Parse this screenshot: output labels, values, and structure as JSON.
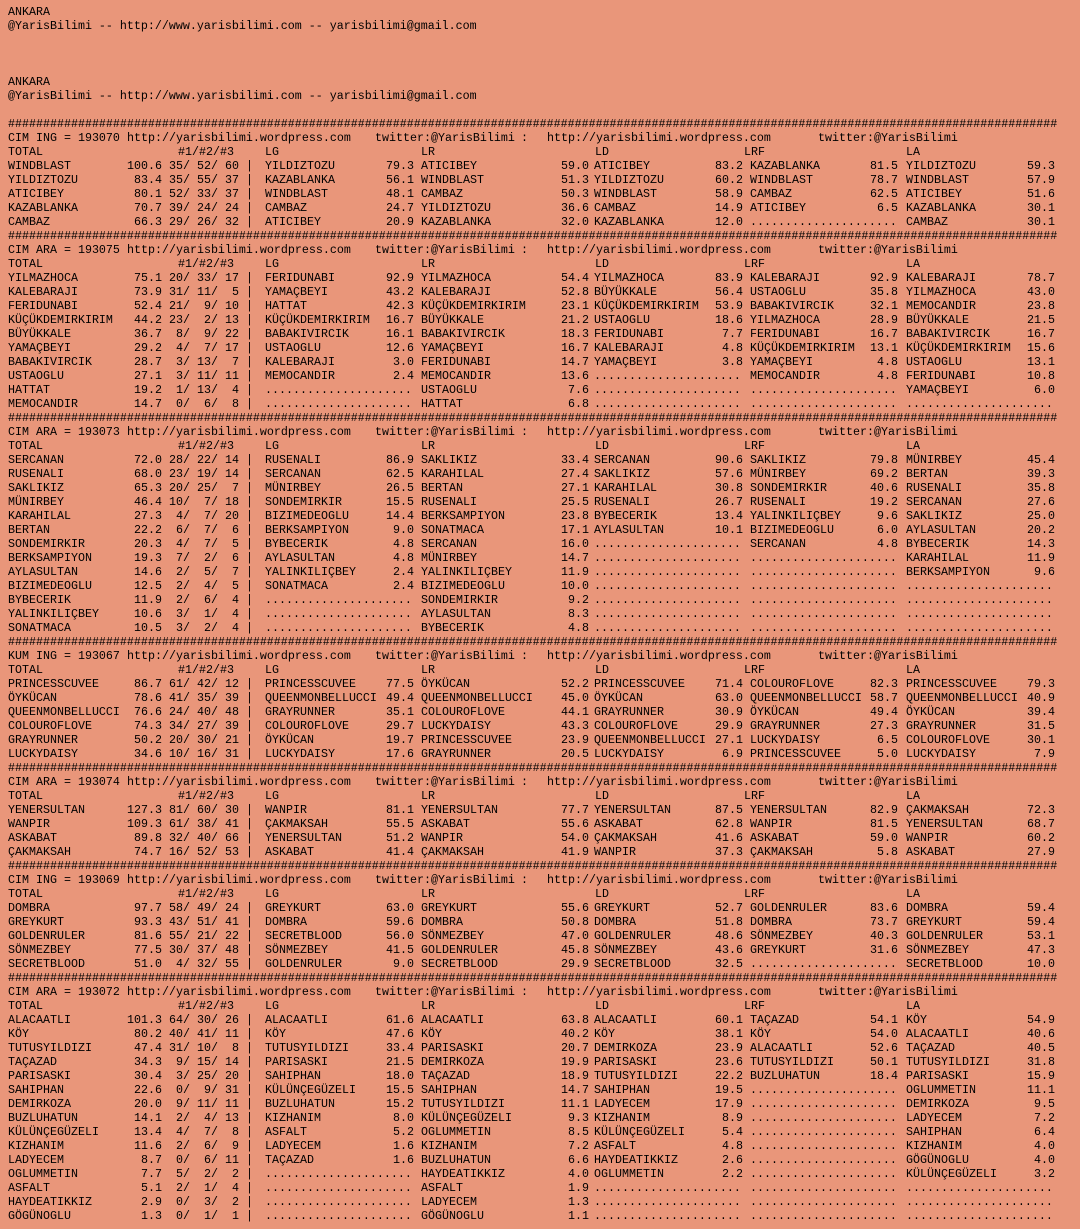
{
  "colors": {
    "background": "#E9967A",
    "text": "#000000"
  },
  "intro": [
    {
      "city": "ANKARA",
      "contact": "@YarisBilimi -- http://www.yarisbilimi.com -- yarisbilimi@gmail.com"
    },
    {
      "city": "ANKARA",
      "contact": "@YarisBilimi -- http://www.yarisbilimi.com -- yarisbilimi@gmail.com"
    }
  ],
  "separator": "######################################################################################################################################################",
  "site_url": "http://yarisbilimi.wordpress.com",
  "twitter": "twitter:@YarisBilimi",
  "twitter_sep": ":",
  "filler": ".....................",
  "bar": "|",
  "column_headers": {
    "total": "TOTAL",
    "ranks": "#1/#2/#3",
    "cols": [
      "LG",
      "LR",
      "LD",
      "LRF",
      "LA"
    ]
  },
  "races": [
    {
      "label": "CIM ING = 193070",
      "rows": [
        [
          "WINDBLAST",
          "100.6",
          35,
          52,
          60,
          "YILDIZTOZU",
          "79.3",
          "ATICIBEY",
          "59.0",
          "ATICIBEY",
          "83.2",
          "KAZABLANKA",
          "81.5",
          "YILDIZTOZU",
          "59.3"
        ],
        [
          "YILDIZTOZU",
          "83.4",
          35,
          55,
          37,
          "KAZABLANKA",
          "56.1",
          "WINDBLAST",
          "51.3",
          "YILDIZTOZU",
          "60.2",
          "WINDBLAST",
          "78.7",
          "WINDBLAST",
          "57.9"
        ],
        [
          "ATICIBEY",
          "80.1",
          52,
          33,
          37,
          "WINDBLAST",
          "48.1",
          "CAMBAZ",
          "50.3",
          "WINDBLAST",
          "58.9",
          "CAMBAZ",
          "62.5",
          "ATICIBEY",
          "51.6"
        ],
        [
          "KAZABLANKA",
          "70.7",
          39,
          24,
          24,
          "CAMBAZ",
          "24.7",
          "YILDIZTOZU",
          "36.6",
          "CAMBAZ",
          "14.9",
          "ATICIBEY",
          "6.5",
          "KAZABLANKA",
          "30.1"
        ],
        [
          "CAMBAZ",
          "66.3",
          29,
          26,
          32,
          "ATICIBEY",
          "20.9",
          "KAZABLANKA",
          "32.0",
          "KAZABLANKA",
          "12.0",
          "",
          "",
          "CAMBAZ",
          "30.1"
        ]
      ]
    },
    {
      "label": "CIM ARA = 193075",
      "rows": [
        [
          "YILMAZHOCA",
          "75.1",
          20,
          33,
          17,
          "FERIDUNABI",
          "92.9",
          "YILMAZHOCA",
          "54.4",
          "YILMAZHOCA",
          "83.9",
          "KALEBARAJI",
          "92.9",
          "KALEBARAJI",
          "78.7"
        ],
        [
          "KALEBARAJI",
          "73.9",
          31,
          11,
          5,
          "YAMAÇBEYI",
          "43.2",
          "KALEBARAJI",
          "52.8",
          "BÜYÜKKALE",
          "56.4",
          "USTAOGLU",
          "35.8",
          "YILMAZHOCA",
          "43.0"
        ],
        [
          "FERIDUNABI",
          "52.4",
          21,
          9,
          10,
          "HATTAT",
          "42.3",
          "KÜÇÜKDEMIRKIRIM",
          "23.1",
          "KÜÇÜKDEMIRKIRIM",
          "53.9",
          "BABAKIVIRCIK",
          "32.1",
          "MEMOCANDIR",
          "23.8"
        ],
        [
          "KÜÇÜKDEMIRKIRIM",
          "44.2",
          23,
          2,
          13,
          "KÜÇÜKDEMIRKIRIM",
          "16.7",
          "BÜYÜKKALE",
          "21.2",
          "USTAOGLU",
          "18.6",
          "YILMAZHOCA",
          "28.9",
          "BÜYÜKKALE",
          "21.5"
        ],
        [
          "BÜYÜKKALE",
          "36.7",
          8,
          9,
          22,
          "BABAKIVIRCIK",
          "16.1",
          "BABAKIVIRCIK",
          "18.3",
          "FERIDUNABI",
          "7.7",
          "FERIDUNABI",
          "16.7",
          "BABAKIVIRCIK",
          "16.7"
        ],
        [
          "YAMAÇBEYI",
          "29.2",
          4,
          7,
          17,
          "USTAOGLU",
          "12.6",
          "YAMAÇBEYI",
          "16.7",
          "KALEBARAJI",
          "4.8",
          "KÜÇÜKDEMIRKIRIM",
          "13.1",
          "KÜÇÜKDEMIRKIRIM",
          "15.6"
        ],
        [
          "BABAKIVIRCIK",
          "28.7",
          3,
          13,
          7,
          "KALEBARAJI",
          "3.0",
          "FERIDUNABI",
          "14.7",
          "YAMAÇBEYI",
          "3.8",
          "YAMAÇBEYI",
          "4.8",
          "USTAOGLU",
          "13.1"
        ],
        [
          "USTAOGLU",
          "27.1",
          3,
          11,
          11,
          "MEMOCANDIR",
          "2.4",
          "MEMOCANDIR",
          "13.6",
          "",
          "",
          "MEMOCANDIR",
          "4.8",
          "FERIDUNABI",
          "10.8"
        ],
        [
          "HATTAT",
          "19.2",
          1,
          13,
          4,
          "",
          "",
          "USTAOGLU",
          "7.6",
          "",
          "",
          "",
          "",
          "YAMAÇBEYI",
          "6.0"
        ],
        [
          "MEMOCANDIR",
          "14.7",
          0,
          6,
          8,
          "",
          "",
          "HATTAT",
          "6.8",
          "",
          "",
          "",
          "",
          "",
          ""
        ]
      ]
    },
    {
      "label": "CIM ARA = 193073",
      "rows": [
        [
          "SERCANAN",
          "72.0",
          28,
          22,
          14,
          "RUSENALI",
          "86.9",
          "SAKLIKIZ",
          "33.4",
          "SERCANAN",
          "90.6",
          "SAKLIKIZ",
          "79.8",
          "MÜNIRBEY",
          "45.4"
        ],
        [
          "RUSENALI",
          "68.0",
          23,
          19,
          14,
          "SERCANAN",
          "62.5",
          "KARAHILAL",
          "27.4",
          "SAKLIKIZ",
          "57.6",
          "MÜNIRBEY",
          "69.2",
          "BERTAN",
          "39.3"
        ],
        [
          "SAKLIKIZ",
          "65.3",
          20,
          25,
          7,
          "MÜNIRBEY",
          "26.5",
          "BERTAN",
          "27.1",
          "KARAHILAL",
          "30.8",
          "SONDEMIRKIR",
          "40.6",
          "RUSENALI",
          "35.8"
        ],
        [
          "MÜNIRBEY",
          "46.4",
          10,
          7,
          18,
          "SONDEMIRKIR",
          "15.5",
          "RUSENALI",
          "25.5",
          "RUSENALI",
          "26.7",
          "RUSENALI",
          "19.2",
          "SERCANAN",
          "27.6"
        ],
        [
          "KARAHILAL",
          "27.3",
          4,
          7,
          20,
          "BIZIMEDEOGLU",
          "14.4",
          "BERKSAMPIYON",
          "23.8",
          "BYBECERIK",
          "13.4",
          "YALINKILIÇBEY",
          "9.6",
          "SAKLIKIZ",
          "25.0"
        ],
        [
          "BERTAN",
          "22.2",
          6,
          7,
          6,
          "BERKSAMPIYON",
          "9.0",
          "SONATMACA",
          "17.1",
          "AYLASULTAN",
          "10.1",
          "BIZIMEDEOGLU",
          "6.0",
          "AYLASULTAN",
          "20.2"
        ],
        [
          "SONDEMIRKIR",
          "20.3",
          4,
          7,
          5,
          "BYBECERIK",
          "4.8",
          "SERCANAN",
          "16.0",
          "",
          "",
          "SERCANAN",
          "4.8",
          "BYBECERIK",
          "14.3"
        ],
        [
          "BERKSAMPIYON",
          "19.3",
          7,
          2,
          6,
          "AYLASULTAN",
          "4.8",
          "MÜNIRBEY",
          "14.7",
          "",
          "",
          "",
          "",
          "KARAHILAL",
          "11.9"
        ],
        [
          "AYLASULTAN",
          "14.6",
          2,
          5,
          7,
          "YALINKILIÇBEY",
          "2.4",
          "YALINKILIÇBEY",
          "11.9",
          "",
          "",
          "",
          "",
          "BERKSAMPIYON",
          "9.6"
        ],
        [
          "BIZIMEDEOGLU",
          "12.5",
          2,
          4,
          5,
          "SONATMACA",
          "2.4",
          "BIZIMEDEOGLU",
          "10.0",
          "",
          "",
          "",
          "",
          "",
          ""
        ],
        [
          "BYBECERIK",
          "11.9",
          2,
          6,
          4,
          "",
          "",
          "SONDEMIRKIR",
          "9.2",
          "",
          "",
          "",
          "",
          "",
          ""
        ],
        [
          "YALINKILIÇBEY",
          "10.6",
          3,
          1,
          4,
          "",
          "",
          "AYLASULTAN",
          "8.3",
          "",
          "",
          "",
          "",
          "",
          ""
        ],
        [
          "SONATMACA",
          "10.5",
          3,
          2,
          4,
          "",
          "",
          "BYBECERIK",
          "4.8",
          "",
          "",
          "",
          "",
          "",
          ""
        ]
      ]
    },
    {
      "label": "KUM ING = 193067",
      "rows": [
        [
          "PRINCESSCUVEE",
          "86.7",
          61,
          42,
          12,
          "PRINCESSCUVEE",
          "77.5",
          "ÖYKÜCAN",
          "52.2",
          "PRINCESSCUVEE",
          "71.4",
          "COLOUROFLOVE",
          "82.3",
          "PRINCESSCUVEE",
          "79.3"
        ],
        [
          "ÖYKÜCAN",
          "78.6",
          41,
          35,
          39,
          "QUEENMONBELLUCCI",
          "49.4",
          "QUEENMONBELLUCCI",
          "45.0",
          "ÖYKÜCAN",
          "63.0",
          "QUEENMONBELLUCCI",
          "58.7",
          "QUEENMONBELLUCCI",
          "40.9"
        ],
        [
          "QUEENMONBELLUCCI",
          "76.6",
          24,
          40,
          48,
          "GRAYRUNNER",
          "35.1",
          "COLOUROFLOVE",
          "44.1",
          "GRAYRUNNER",
          "30.9",
          "ÖYKÜCAN",
          "49.4",
          "ÖYKÜCAN",
          "39.4"
        ],
        [
          "COLOUROFLOVE",
          "74.3",
          34,
          27,
          39,
          "COLOUROFLOVE",
          "29.7",
          "LUCKYDAISY",
          "43.3",
          "COLOUROFLOVE",
          "29.9",
          "GRAYRUNNER",
          "27.3",
          "GRAYRUNNER",
          "31.5"
        ],
        [
          "GRAYRUNNER",
          "50.2",
          20,
          30,
          21,
          "ÖYKÜCAN",
          "19.7",
          "PRINCESSCUVEE",
          "23.9",
          "QUEENMONBELLUCCI",
          "27.1",
          "LUCKYDAISY",
          "6.5",
          "COLOUROFLOVE",
          "30.1"
        ],
        [
          "LUCKYDAISY",
          "34.6",
          10,
          16,
          31,
          "LUCKYDAISY",
          "17.6",
          "GRAYRUNNER",
          "20.5",
          "LUCKYDAISY",
          "6.9",
          "PRINCESSCUVEE",
          "5.0",
          "LUCKYDAISY",
          "7.9"
        ]
      ]
    },
    {
      "label": "CIM ARA = 193074",
      "rows": [
        [
          "YENERSULTAN",
          "127.3",
          81,
          60,
          30,
          "WANPIR",
          "81.1",
          "YENERSULTAN",
          "77.7",
          "YENERSULTAN",
          "87.5",
          "YENERSULTAN",
          "82.9",
          "ÇAKMAKSAH",
          "72.3"
        ],
        [
          "WANPIR",
          "109.3",
          61,
          38,
          41,
          "ÇAKMAKSAH",
          "55.5",
          "ASKABAT",
          "55.6",
          "ASKABAT",
          "62.8",
          "WANPIR",
          "81.5",
          "YENERSULTAN",
          "68.7"
        ],
        [
          "ASKABAT",
          "89.8",
          32,
          40,
          66,
          "YENERSULTAN",
          "51.2",
          "WANPIR",
          "54.0",
          "ÇAKMAKSAH",
          "41.6",
          "ASKABAT",
          "59.0",
          "WANPIR",
          "60.2"
        ],
        [
          "ÇAKMAKSAH",
          "74.7",
          16,
          52,
          53,
          "ASKABAT",
          "41.4",
          "ÇAKMAKSAH",
          "41.9",
          "WANPIR",
          "37.3",
          "ÇAKMAKSAH",
          "5.8",
          "ASKABAT",
          "27.9"
        ]
      ]
    },
    {
      "label": "CIM ING = 193069",
      "rows": [
        [
          "DOMBRA",
          "97.7",
          58,
          49,
          24,
          "GREYKURT",
          "63.0",
          "GREYKURT",
          "55.6",
          "GREYKURT",
          "52.7",
          "GOLDENRULER",
          "83.6",
          "DOMBRA",
          "59.4"
        ],
        [
          "GREYKURT",
          "93.3",
          43,
          51,
          41,
          "DOMBRA",
          "59.6",
          "DOMBRA",
          "50.8",
          "DOMBRA",
          "51.8",
          "DOMBRA",
          "73.7",
          "GREYKURT",
          "59.4"
        ],
        [
          "GOLDENRULER",
          "81.6",
          55,
          21,
          22,
          "SECRETBLOOD",
          "56.0",
          "SÖNMEZBEY",
          "47.0",
          "GOLDENRULER",
          "48.6",
          "SÖNMEZBEY",
          "40.3",
          "GOLDENRULER",
          "53.1"
        ],
        [
          "SÖNMEZBEY",
          "77.5",
          30,
          37,
          48,
          "SÖNMEZBEY",
          "41.5",
          "GOLDENRULER",
          "45.8",
          "SÖNMEZBEY",
          "43.6",
          "GREYKURT",
          "31.6",
          "SÖNMEZBEY",
          "47.3"
        ],
        [
          "SECRETBLOOD",
          "51.0",
          4,
          32,
          55,
          "GOLDENRULER",
          "9.0",
          "SECRETBLOOD",
          "29.9",
          "SECRETBLOOD",
          "32.5",
          "",
          "",
          "SECRETBLOOD",
          "10.0"
        ]
      ]
    },
    {
      "label": "CIM ARA = 193072",
      "rows": [
        [
          "ALACAATLI",
          "101.3",
          64,
          30,
          26,
          "ALACAATLI",
          "61.6",
          "ALACAATLI",
          "63.8",
          "ALACAATLI",
          "60.1",
          "TAÇAZAD",
          "54.1",
          "KÖY",
          "54.9"
        ],
        [
          "KÖY",
          "80.2",
          40,
          41,
          11,
          "KÖY",
          "47.6",
          "KÖY",
          "40.2",
          "KÖY",
          "38.1",
          "KÖY",
          "54.0",
          "ALACAATLI",
          "40.6"
        ],
        [
          "TUTUSYILDIZI",
          "47.4",
          31,
          10,
          8,
          "TUTUSYILDIZI",
          "33.4",
          "PARISASKI",
          "20.7",
          "DEMIRKOZA",
          "23.9",
          "ALACAATLI",
          "52.6",
          "TAÇAZAD",
          "40.5"
        ],
        [
          "TAÇAZAD",
          "34.3",
          9,
          15,
          14,
          "PARISASKI",
          "21.5",
          "DEMIRKOZA",
          "19.9",
          "PARISASKI",
          "23.6",
          "TUTUSYILDIZI",
          "50.1",
          "TUTUSYILDIZI",
          "31.8"
        ],
        [
          "PARISASKI",
          "30.4",
          3,
          25,
          20,
          "SAHIPHAN",
          "18.0",
          "TAÇAZAD",
          "18.9",
          "TUTUSYILDIZI",
          "22.2",
          "BUZLUHATUN",
          "18.4",
          "PARISASKI",
          "15.9"
        ],
        [
          "SAHIPHAN",
          "22.6",
          0,
          9,
          31,
          "KÜLÜNÇEGÜZELI",
          "15.5",
          "SAHIPHAN",
          "14.7",
          "SAHIPHAN",
          "19.5",
          "",
          "",
          "OGLUMMETIN",
          "11.1"
        ],
        [
          "DEMIRKOZA",
          "20.0",
          9,
          11,
          11,
          "BUZLUHATUN",
          "15.2",
          "TUTUSYILDIZI",
          "11.1",
          "LADYECEM",
          "17.9",
          "",
          "",
          "DEMIRKOZA",
          "9.5"
        ],
        [
          "BUZLUHATUN",
          "14.1",
          2,
          4,
          13,
          "KIZHANIM",
          "8.0",
          "KÜLÜNÇEGÜZELI",
          "9.3",
          "KIZHANIM",
          "8.9",
          "",
          "",
          "LADYECEM",
          "7.2"
        ],
        [
          "KÜLÜNÇEGÜZELI",
          "13.4",
          4,
          7,
          8,
          "ASFALT",
          "5.2",
          "OGLUMMETIN",
          "8.5",
          "KÜLÜNÇEGÜZELI",
          "5.4",
          "",
          "",
          "SAHIPHAN",
          "6.4"
        ],
        [
          "KIZHANIM",
          "11.6",
          2,
          6,
          9,
          "LADYECEM",
          "1.6",
          "KIZHANIM",
          "7.2",
          "ASFALT",
          "4.8",
          "",
          "",
          "KIZHANIM",
          "4.0"
        ],
        [
          "LADYECEM",
          "8.7",
          0,
          6,
          11,
          "TAÇAZAD",
          "1.6",
          "BUZLUHATUN",
          "6.6",
          "HAYDEATIKKIZ",
          "2.6",
          "",
          "",
          "GÖGÜNOGLU",
          "4.0"
        ],
        [
          "OGLUMMETIN",
          "7.7",
          5,
          2,
          2,
          "",
          "",
          "HAYDEATIKKIZ",
          "4.0",
          "OGLUMMETIN",
          "2.2",
          "",
          "",
          "KÜLÜNÇEGÜZELI",
          "3.2"
        ],
        [
          "ASFALT",
          "5.1",
          2,
          1,
          4,
          "",
          "",
          "ASFALT",
          "1.9",
          "",
          "",
          "",
          "",
          "",
          ""
        ],
        [
          "HAYDEATIKKIZ",
          "2.9",
          0,
          3,
          2,
          "",
          "",
          "LADYECEM",
          "1.3",
          "",
          "",
          "",
          "",
          "",
          ""
        ],
        [
          "GÖGÜNOGLU",
          "1.3",
          0,
          1,
          1,
          "",
          "",
          "GÖGÜNOGLU",
          "1.1",
          "",
          "",
          "",
          "",
          "",
          ""
        ]
      ]
    }
  ]
}
